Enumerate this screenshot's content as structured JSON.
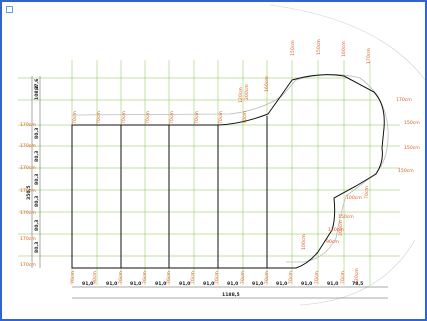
{
  "colors": {
    "accent": "#2f63d6",
    "grid": "#8bc34a",
    "label": "#e05a1e",
    "outline": "#111111",
    "dim": "#222222"
  },
  "left_labels": [
    "170cm",
    "170cm",
    "170cm",
    "170cm",
    "170cm",
    "170cm",
    "170cm"
  ],
  "left_dims": [
    "108,2",
    "97,6",
    "80,3",
    "80,3",
    "80,3",
    "80,3",
    "80,3",
    "80,3",
    "350,5"
  ],
  "panel_labels_top": [
    "70cm",
    "70cm",
    "70cm",
    "70cm",
    "70cm",
    "70cm",
    "70cm",
    "70cm"
  ],
  "right_labels": [
    "170cm",
    "150cm",
    "150cm",
    "150cm"
  ],
  "top_labels": [
    "120cm",
    "200cm",
    "160cm",
    "150cm",
    "150cm",
    "160cm",
    "170cm"
  ],
  "bottom_labels": [
    "70cm",
    "90cm",
    "70cm",
    "70cm",
    "70cm",
    "70cm",
    "70cm",
    "70cm",
    "70cm",
    "70cm",
    "70cm",
    "70cm",
    "120cm"
  ],
  "inner_labels": [
    "100cm",
    "90cm",
    "120cm",
    "150cm",
    "200cm",
    "100cm",
    "70cm"
  ],
  "bottom_dims": [
    "91,0",
    "91,0",
    "91,0",
    "91,0",
    "91,0",
    "91,0",
    "91,0",
    "91,0",
    "91,0",
    "91,0",
    "91,0",
    "78,5"
  ],
  "total": "1188,5"
}
